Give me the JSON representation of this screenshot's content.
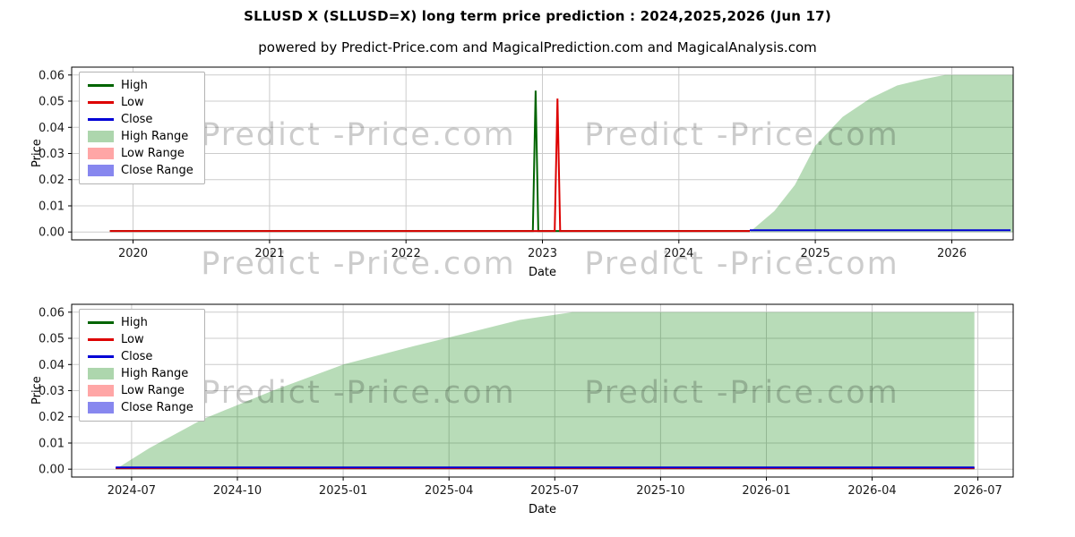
{
  "title": "SLLUSD X (SLLUSD=X) long term price prediction : 2024,2025,2026 (Jun 17)",
  "subtitle": "powered by Predict-Price.com and MagicalPrediction.com and MagicalAnalysis.com",
  "watermark": {
    "text": "Predict -Price.com"
  },
  "legend": {
    "items": [
      {
        "label": "High",
        "type": "line",
        "color": "#006400"
      },
      {
        "label": "Low",
        "type": "line",
        "color": "#dd0000"
      },
      {
        "label": "Close",
        "type": "line",
        "color": "#0000d6"
      },
      {
        "label": "High Range",
        "type": "patch",
        "color": "rgba(0,128,0,0.32)"
      },
      {
        "label": "Low Range",
        "type": "patch",
        "color": "rgba(255,0,0,0.35)"
      },
      {
        "label": "Close Range",
        "type": "patch",
        "color": "rgba(70,70,230,0.65)"
      }
    ]
  },
  "chart_data": [
    {
      "type": "line",
      "name": "yearly-prediction",
      "xlabel": "Date",
      "ylabel": "Price",
      "grid": true,
      "legend_position": "upper-left",
      "xlim": [
        2019.55,
        2026.45
      ],
      "ylim": [
        -0.003,
        0.063
      ],
      "xticks": [
        {
          "v": 2020,
          "label": "2020"
        },
        {
          "v": 2021,
          "label": "2021"
        },
        {
          "v": 2022,
          "label": "2022"
        },
        {
          "v": 2023,
          "label": "2023"
        },
        {
          "v": 2024,
          "label": "2024"
        },
        {
          "v": 2025,
          "label": "2025"
        },
        {
          "v": 2026,
          "label": "2026"
        }
      ],
      "yticks": [
        {
          "v": 0.0,
          "label": "0.00"
        },
        {
          "v": 0.01,
          "label": "0.01"
        },
        {
          "v": 0.02,
          "label": "0.02"
        },
        {
          "v": 0.03,
          "label": "0.03"
        },
        {
          "v": 0.04,
          "label": "0.04"
        },
        {
          "v": 0.05,
          "label": "0.05"
        },
        {
          "v": 0.06,
          "label": "0.06"
        }
      ],
      "areas": [
        {
          "name": "High Range",
          "color": "rgba(0,128,0,0.28)",
          "baseline": 0,
          "points": [
            [
              2024.52,
              0.0
            ],
            [
              2024.7,
              0.008
            ],
            [
              2024.85,
              0.018
            ],
            [
              2025.0,
              0.033
            ],
            [
              2025.2,
              0.044
            ],
            [
              2025.4,
              0.051
            ],
            [
              2025.6,
              0.056
            ],
            [
              2025.8,
              0.0585
            ],
            [
              2025.95,
              0.06
            ],
            [
              2026.45,
              0.06
            ]
          ]
        }
      ],
      "series": [
        {
          "name": "High",
          "color": "#006400",
          "points": [
            [
              2019.83,
              0.0004
            ],
            [
              2022.93,
              0.0004
            ],
            [
              2022.95,
              0.054
            ],
            [
              2022.97,
              0.0004
            ],
            [
              2024.52,
              0.0004
            ]
          ]
        },
        {
          "name": "Low",
          "color": "#dd0000",
          "points": [
            [
              2019.83,
              0.0004
            ],
            [
              2023.09,
              0.0004
            ],
            [
              2023.11,
              0.051
            ],
            [
              2023.13,
              0.0004
            ],
            [
              2024.52,
              0.0004
            ]
          ]
        },
        {
          "name": "Close",
          "color": "#0000d6",
          "points": [
            [
              2024.52,
              0.0007
            ],
            [
              2026.43,
              0.0007
            ]
          ]
        }
      ]
    },
    {
      "type": "line",
      "name": "monthly-prediction",
      "xlabel": "Date",
      "ylabel": "Price",
      "grid": true,
      "legend_position": "upper-left",
      "x_unit": "months from 2024-06",
      "xlim": [
        -0.7,
        26.0
      ],
      "ylim": [
        -0.003,
        0.063
      ],
      "xticks": [
        {
          "v": 1,
          "label": "2024-07"
        },
        {
          "v": 4,
          "label": "2024-10"
        },
        {
          "v": 7,
          "label": "2025-01"
        },
        {
          "v": 10,
          "label": "2025-04"
        },
        {
          "v": 13,
          "label": "2025-07"
        },
        {
          "v": 16,
          "label": "2025-10"
        },
        {
          "v": 19,
          "label": "2026-01"
        },
        {
          "v": 22,
          "label": "2026-04"
        },
        {
          "v": 25,
          "label": "2026-07"
        }
      ],
      "yticks": [
        {
          "v": 0.0,
          "label": "0.00"
        },
        {
          "v": 0.01,
          "label": "0.01"
        },
        {
          "v": 0.02,
          "label": "0.02"
        },
        {
          "v": 0.03,
          "label": "0.03"
        },
        {
          "v": 0.04,
          "label": "0.04"
        },
        {
          "v": 0.05,
          "label": "0.05"
        },
        {
          "v": 0.06,
          "label": "0.06"
        }
      ],
      "areas": [
        {
          "name": "High Range",
          "color": "rgba(0,128,0,0.28)",
          "baseline": 0,
          "points": [
            [
              0.55,
              0.0
            ],
            [
              1.5,
              0.008
            ],
            [
              3,
              0.019
            ],
            [
              5,
              0.03
            ],
            [
              7,
              0.04
            ],
            [
              9,
              0.047
            ],
            [
              10.5,
              0.052
            ],
            [
              12,
              0.057
            ],
            [
              13.5,
              0.06
            ],
            [
              24.9,
              0.06
            ]
          ]
        }
      ],
      "series": [
        {
          "name": "High",
          "color": "#006400",
          "points": [
            [
              0.55,
              0.0004
            ],
            [
              24.9,
              0.0004
            ]
          ]
        },
        {
          "name": "Low",
          "color": "#dd0000",
          "points": [
            [
              0.55,
              0.0004
            ],
            [
              24.9,
              0.0004
            ]
          ]
        },
        {
          "name": "Close",
          "color": "#0000d6",
          "points": [
            [
              0.55,
              0.0007
            ],
            [
              24.9,
              0.0007
            ]
          ]
        }
      ]
    }
  ]
}
